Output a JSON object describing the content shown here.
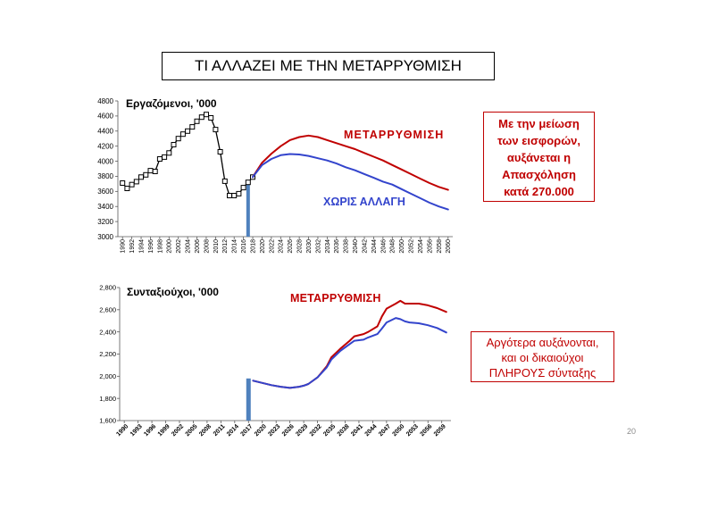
{
  "title": "ΤΙ ΑΛΛΑΖΕΙ ΜΕ ΤΗΝ ΜΕΤΑΡΡΥΘΜΙΣΗ",
  "chart_data": [
    {
      "type": "line",
      "title": "Εργαζόμενοι, '000",
      "xlim": [
        1989,
        2061
      ],
      "ylim": [
        3000,
        4800
      ],
      "xticks": [
        1990,
        1992,
        1994,
        1996,
        1998,
        2000,
        2002,
        2004,
        2006,
        2008,
        2010,
        2012,
        2014,
        2016,
        2018,
        2020,
        2022,
        2024,
        2026,
        2028,
        2030,
        2032,
        2034,
        2036,
        2038,
        2040,
        2042,
        2044,
        2046,
        2048,
        2050,
        2052,
        2054,
        2056,
        2058,
        2060
      ],
      "yticks": [
        3000,
        3200,
        3400,
        3600,
        3800,
        4000,
        4200,
        4400,
        4600,
        4800
      ],
      "ytick_labels": [
        "3000",
        "3200",
        "3400",
        "3600",
        "3800",
        "4000",
        "4200",
        "4400",
        "4600",
        "4800"
      ],
      "history": {
        "color": "#000000",
        "x": [
          1990,
          1991,
          1992,
          1993,
          1994,
          1995,
          1996,
          1997,
          1998,
          1999,
          2000,
          2001,
          2002,
          2003,
          2004,
          2005,
          2006,
          2007,
          2008,
          2009,
          2010,
          2011,
          2012,
          2013,
          2014,
          2015,
          2016,
          2017,
          2018
        ],
        "y": [
          3710,
          3640,
          3690,
          3730,
          3790,
          3820,
          3875,
          3865,
          4030,
          4055,
          4110,
          4220,
          4300,
          4360,
          4400,
          4455,
          4530,
          4585,
          4620,
          4575,
          4420,
          4125,
          3735,
          3545,
          3545,
          3570,
          3650,
          3720,
          3790
        ]
      },
      "series": [
        {
          "label": "ΜΕΤΑΡΡΥΘΜΙΣΗ",
          "color": "#c00000",
          "x": [
            2018,
            2020,
            2022,
            2024,
            2026,
            2028,
            2030,
            2032,
            2034,
            2036,
            2038,
            2040,
            2042,
            2044,
            2046,
            2048,
            2050,
            2052,
            2054,
            2056,
            2058,
            2060
          ],
          "y": [
            3790,
            3980,
            4100,
            4200,
            4280,
            4320,
            4340,
            4320,
            4280,
            4240,
            4200,
            4160,
            4110,
            4060,
            4010,
            3950,
            3890,
            3830,
            3770,
            3710,
            3660,
            3620
          ]
        },
        {
          "label": "ΧΩΡΙΣ ΑΛΛΑΓΗ",
          "color": "#3344cc",
          "x": [
            2018,
            2020,
            2022,
            2024,
            2026,
            2028,
            2030,
            2032,
            2034,
            2036,
            2038,
            2040,
            2042,
            2044,
            2046,
            2048,
            2050,
            2052,
            2054,
            2056,
            2058,
            2060
          ],
          "y": [
            3790,
            3950,
            4030,
            4080,
            4095,
            4090,
            4070,
            4040,
            4010,
            3970,
            3920,
            3880,
            3830,
            3780,
            3730,
            3690,
            3630,
            3570,
            3510,
            3450,
            3400,
            3360
          ]
        }
      ],
      "bar": {
        "x": 2017,
        "value": 3750,
        "color": "#4f81bd"
      }
    },
    {
      "type": "line",
      "title": "Συνταξιούχοι, '000",
      "xlim": [
        1989,
        2061
      ],
      "ylim": [
        1600,
        2800
      ],
      "xticks": [
        1990,
        1993,
        1996,
        1999,
        2002,
        2005,
        2008,
        2011,
        2014,
        2017,
        2020,
        2023,
        2026,
        2029,
        2032,
        2035,
        2038,
        2041,
        2044,
        2047,
        2050,
        2053,
        2056,
        2059
      ],
      "yticks": [
        1600,
        1800,
        2000,
        2200,
        2400,
        2600,
        2800
      ],
      "ytick_labels": [
        "1,600",
        "1,800",
        "2,000",
        "2,200",
        "2,400",
        "2,600",
        "2,800"
      ],
      "series": [
        {
          "label": "ΜΕΤΑΡΡΥΘΜΙΣΗ",
          "color": "#c00000",
          "x": [
            2018,
            2020,
            2022,
            2024,
            2026,
            2028,
            2029,
            2030,
            2032,
            2034,
            2035,
            2037,
            2039,
            2040,
            2042,
            2043,
            2045,
            2046,
            2047,
            2049,
            2050,
            2051,
            2052,
            2054,
            2056,
            2058,
            2060
          ],
          "y": [
            1960,
            1940,
            1920,
            1905,
            1895,
            1905,
            1915,
            1930,
            1990,
            2090,
            2170,
            2250,
            2320,
            2360,
            2380,
            2400,
            2450,
            2540,
            2610,
            2655,
            2680,
            2655,
            2655,
            2655,
            2640,
            2615,
            2580
          ]
        },
        {
          "color": "#3344cc",
          "x": [
            2018,
            2020,
            2022,
            2024,
            2026,
            2028,
            2029,
            2030,
            2032,
            2034,
            2035,
            2037,
            2039,
            2040,
            2042,
            2043,
            2045,
            2046,
            2047,
            2049,
            2050,
            2051,
            2052,
            2054,
            2056,
            2058,
            2060
          ],
          "y": [
            1960,
            1940,
            1920,
            1905,
            1895,
            1905,
            1915,
            1930,
            1990,
            2080,
            2150,
            2230,
            2290,
            2320,
            2330,
            2350,
            2380,
            2430,
            2485,
            2525,
            2515,
            2495,
            2485,
            2478,
            2460,
            2435,
            2395
          ]
        }
      ],
      "bar": {
        "x": 2017,
        "value": 1980,
        "color": "#4f81bd"
      }
    }
  ],
  "callouts": [
    {
      "color": "#c00000",
      "lines": [
        "Με την μείωση",
        "των εισφορών,",
        "αυξάνεται η",
        "Απασχόληση",
        "κατά 270.000"
      ]
    },
    {
      "color": "#c00000",
      "lines": [
        "Αργότερα αυξάνονται,",
        "και οι δικαιούχοι",
        "ΠΛΗΡΟΥΣ σύνταξης"
      ]
    }
  ],
  "page_number": "20"
}
